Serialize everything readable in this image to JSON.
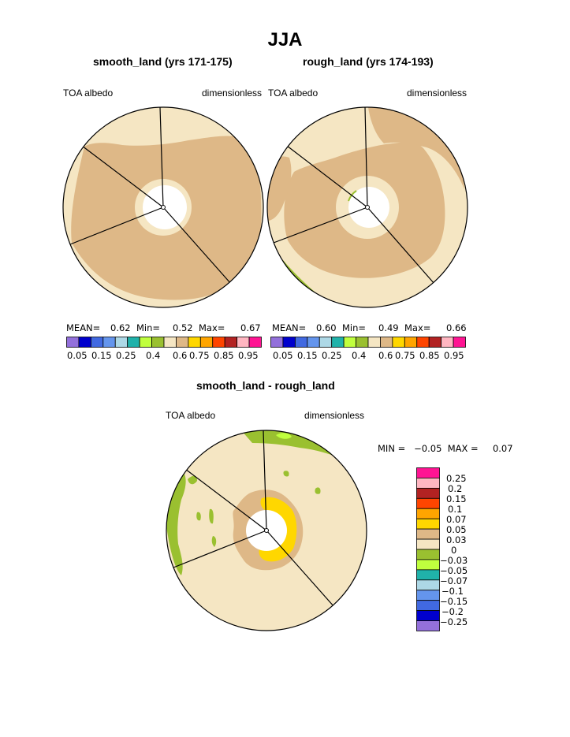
{
  "title": "JJA",
  "panels": [
    {
      "title": "smooth_land (yrs 171-175)",
      "left_label": "TOA albedo",
      "right_label": "dimensionless",
      "stats": {
        "mean_label": "MEAN=",
        "mean": "0.62",
        "min_label": "Min=",
        "min": "0.52",
        "max_label": "Max=",
        "max": "0.67"
      },
      "colorbar_labels": [
        "0.05",
        "0.15",
        "0.25",
        "0.4",
        "0.6",
        "0.75",
        "0.85",
        "0.95"
      ]
    },
    {
      "title": "rough_land (yrs 174-193)",
      "left_label": "TOA albedo",
      "right_label": "dimensionless",
      "stats": {
        "mean_label": "MEAN=",
        "mean": "0.60",
        "min_label": "Min=",
        "min": "0.49",
        "max_label": "Max=",
        "max": "0.66"
      },
      "colorbar_labels": [
        "0.05",
        "0.15",
        "0.25",
        "0.4",
        "0.6",
        "0.75",
        "0.85",
        "0.95"
      ]
    },
    {
      "title": "smooth_land - rough_land",
      "left_label": "TOA albedo",
      "right_label": "dimensionless",
      "minmax_text": "MIN =   −0.05  MAX =     0.07",
      "colorbar_labels": [
        "0.25",
        "0.2",
        "0.15",
        "0.1",
        "0.07",
        "0.05",
        "0.03",
        "0",
        "−0.03",
        "−0.05",
        "−0.07",
        "−0.1",
        "−0.15",
        "−0.2",
        "−0.25"
      ]
    }
  ],
  "colors": {
    "abs_scale": [
      "#9370db",
      "#0000cd",
      "#4169e1",
      "#6495ed",
      "#add8e6",
      "#20b2aa",
      "#c0ff3e",
      "#9ac030",
      "#f5e6c3",
      "#deb887",
      "#ffd700",
      "#ffa500",
      "#ff4500",
      "#b22222",
      "#ffb6c1",
      "#ff1493"
    ],
    "diff_scale": [
      "#ff1493",
      "#ffb6c1",
      "#b22222",
      "#ff4500",
      "#ffa500",
      "#ffd700",
      "#deb887",
      "#f5e6c3",
      "#9ac030",
      "#c0ff3e",
      "#20b2aa",
      "#add8e6",
      "#6495ed",
      "#4169e1",
      "#0000cd",
      "#9370db"
    ]
  },
  "chart_data": [
    {
      "type": "heatmap",
      "title": "smooth_land (yrs 171-175)",
      "projection": "polar stereographic",
      "units": "dimensionless",
      "variable": "TOA albedo",
      "mean": 0.62,
      "min": 0.52,
      "max": 0.67,
      "contour_levels": [
        0.05,
        0.1,
        0.15,
        0.2,
        0.25,
        0.3,
        0.4,
        0.5,
        0.6,
        0.65,
        0.75,
        0.8,
        0.85,
        0.9,
        0.95
      ],
      "regions": [
        {
          "range": "0.6-0.65",
          "color": "#f5e6c3",
          "area": "outer rim and inner ring"
        },
        {
          "range": "0.65-0.75",
          "color": "#deb887",
          "area": "main interior"
        }
      ]
    },
    {
      "type": "heatmap",
      "title": "rough_land (yrs 174-193)",
      "projection": "polar stereographic",
      "units": "dimensionless",
      "variable": "TOA albedo",
      "mean": 0.6,
      "min": 0.49,
      "max": 0.66,
      "contour_levels": [
        0.05,
        0.1,
        0.15,
        0.2,
        0.25,
        0.3,
        0.4,
        0.5,
        0.6,
        0.65,
        0.75,
        0.8,
        0.85,
        0.9,
        0.95
      ],
      "regions": [
        {
          "range": "0.4-0.6",
          "color": "#9ac030",
          "area": "small patch at lower-left rim"
        },
        {
          "range": "0.6-0.65",
          "color": "#f5e6c3",
          "area": "outer rim and inner ring"
        },
        {
          "range": "0.65-0.75",
          "color": "#deb887",
          "area": "main interior"
        }
      ]
    },
    {
      "type": "heatmap",
      "title": "smooth_land - rough_land",
      "projection": "polar stereographic",
      "units": "dimensionless",
      "variable": "TOA albedo",
      "min": -0.05,
      "max": 0.07,
      "contour_levels": [
        -0.25,
        -0.2,
        -0.15,
        -0.1,
        -0.07,
        -0.05,
        -0.03,
        0,
        0.03,
        0.05,
        0.07,
        0.1,
        0.15,
        0.2,
        0.25
      ],
      "regions": [
        {
          "range": "0-0.03",
          "color": "#f5e6c3",
          "area": "most of the domain"
        },
        {
          "range": "0.03-0.05",
          "color": "#deb887",
          "area": "ring around pole"
        },
        {
          "range": "0.05-0.07",
          "color": "#ffd700",
          "area": "inner ring around pole"
        },
        {
          "range": "-0.03-0",
          "color": "#9ac030",
          "area": "scattered patches near rim"
        }
      ]
    }
  ]
}
